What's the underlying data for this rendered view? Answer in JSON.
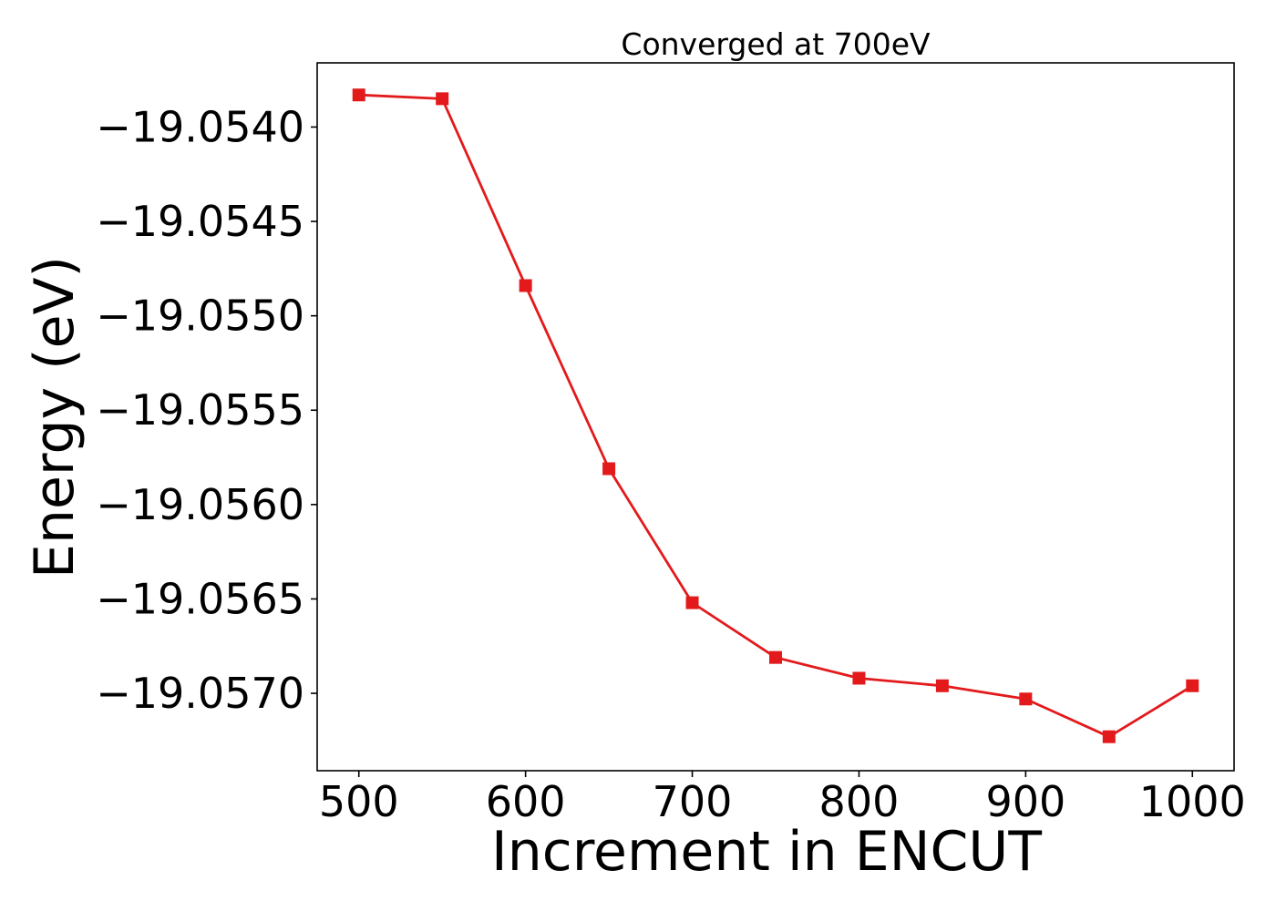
{
  "chart_data": {
    "type": "line",
    "title": "Converged at 700eV",
    "xlabel": "Increment in ENCUT",
    "ylabel": "Energy (eV)",
    "x": [
      500,
      550,
      600,
      650,
      700,
      750,
      800,
      850,
      900,
      950,
      1000
    ],
    "series": [
      {
        "values": [
          -19.05383,
          -19.05385,
          -19.05484,
          -19.05581,
          -19.05652,
          -19.05681,
          -19.05692,
          -19.05696,
          -19.05703,
          -19.05723,
          -19.05696
        ],
        "color": "#e31a1c",
        "marker": "square"
      }
    ],
    "xlim": [
      475,
      1025
    ],
    "ylim": [
      -19.05741,
      -19.05366
    ],
    "xticks": [
      500,
      600,
      700,
      800,
      900,
      1000
    ],
    "xtick_labels": [
      "500",
      "600",
      "700",
      "800",
      "900",
      "1000"
    ],
    "yticks": [
      -19.054,
      -19.0545,
      -19.055,
      -19.0555,
      -19.056,
      -19.0565,
      -19.057
    ],
    "ytick_labels": [
      "−19.0540",
      "−19.0545",
      "−19.0550",
      "−19.0555",
      "−19.0560",
      "−19.0565",
      "−19.0570"
    ],
    "grid": false,
    "legend": "none"
  }
}
